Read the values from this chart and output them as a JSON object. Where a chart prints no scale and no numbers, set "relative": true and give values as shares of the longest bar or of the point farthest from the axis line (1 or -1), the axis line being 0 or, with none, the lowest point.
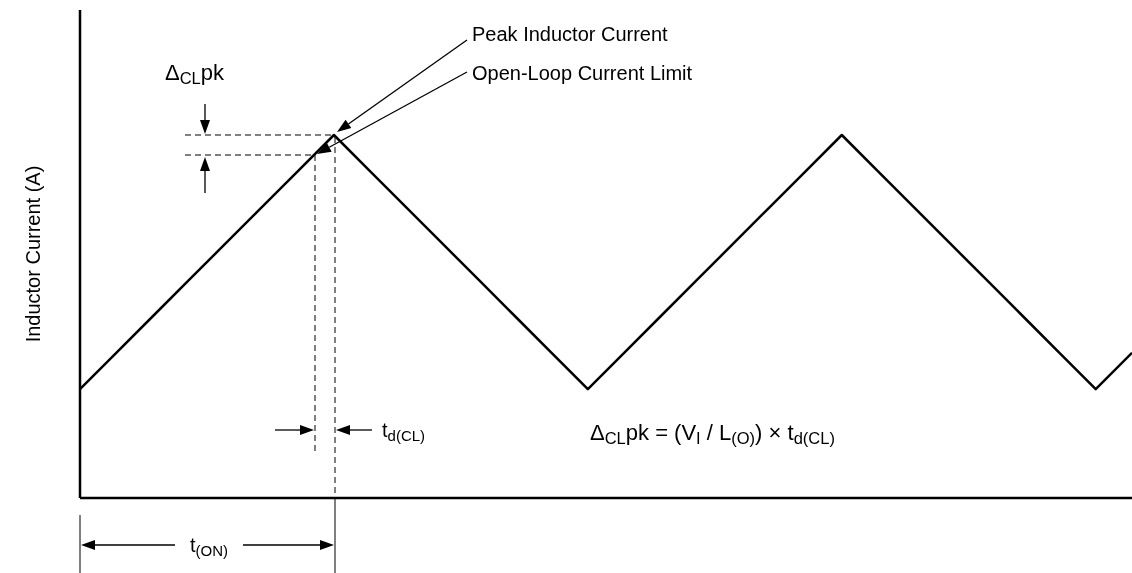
{
  "chart_data": {
    "type": "line",
    "relative": true,
    "ylabel": "Inductor Current (A)",
    "categories": [
      null,
      null,
      null,
      null,
      null,
      null,
      null,
      null,
      null,
      null,
      null,
      null,
      null,
      null,
      null,
      null,
      null,
      null,
      null,
      null,
      null,
      null,
      null,
      null,
      null,
      null,
      null,
      null,
      null,
      null
    ],
    "series": [
      {
        "color": "#000000",
        "values": [
          0.3,
          0.4,
          0.5,
          0.6,
          0.7,
          0.8,
          0.9,
          1.0,
          0.9,
          0.8,
          0.7,
          0.6,
          0.5,
          0.4,
          0.3,
          0.4,
          0.5,
          0.6,
          0.7,
          0.8,
          0.9,
          1.0,
          0.9,
          0.8,
          0.7,
          0.6,
          0.5,
          0.4,
          0.3,
          0.4
        ]
      }
    ],
    "annotations": [
      "Peak Inductor Current",
      "Open-Loop Current Limit",
      "Δ$_{CL}$pk",
      "t$_{d(CL)}$",
      "Δ$_{CL}$pk = (V$_{I}$ / L$_{(O)}$) × t$_{d(CL)}$",
      "t$_{(ON)}$"
    ]
  }
}
